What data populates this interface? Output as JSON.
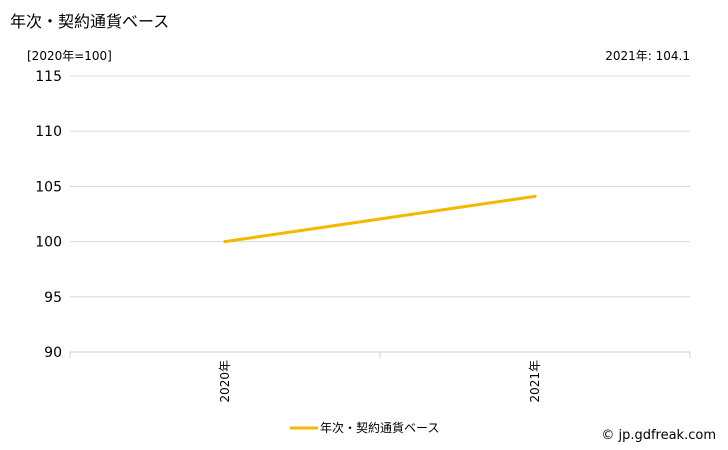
{
  "title": "年次・契約通貨ベース",
  "unit_label": "[2020年=100]",
  "latest_value_label": "2021年: 104.1",
  "credit": "© jp.gdfreak.com",
  "colors": {
    "series": "#f5b800",
    "grid": "#d9d9d9"
  },
  "chart_data": {
    "type": "line",
    "categories": [
      "2020年",
      "2021年"
    ],
    "series": [
      {
        "name": "年次・契約通貨ベース",
        "values": [
          100,
          104.1
        ]
      }
    ],
    "ylim": [
      90,
      115
    ],
    "yticks": [
      90,
      95,
      100,
      105,
      110,
      115
    ],
    "ytick_labels": [
      "90",
      "95",
      "100",
      "105",
      "110",
      "115"
    ],
    "grid": true,
    "legend": "bottom"
  }
}
